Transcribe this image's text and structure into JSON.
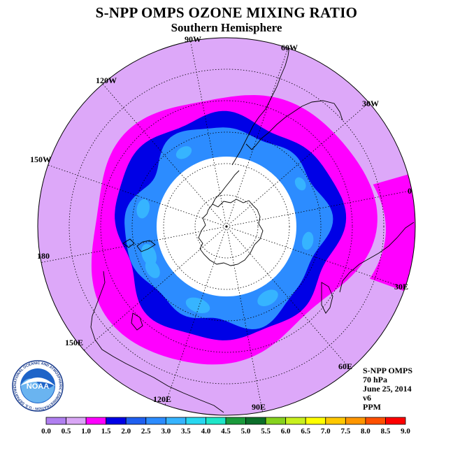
{
  "title": "S-NPP OMPS OZONE MIXING RATIO",
  "subtitle": "Southern Hemisphere",
  "longitude_labels": [
    "90W",
    "60W",
    "30W",
    "0",
    "30E",
    "60E",
    "90E",
    "120E",
    "150E",
    "180",
    "150W",
    "120W"
  ],
  "info": {
    "instrument": "S-NPP OMPS",
    "level": "70 hPa",
    "date": "June 25, 2014",
    "version": "v6",
    "units": "PPM"
  },
  "colorbar": {
    "ticks": [
      "0.0",
      "0.5",
      "1.0",
      "1.5",
      "2.0",
      "2.5",
      "3.0",
      "3.5",
      "4.0",
      "4.5",
      "5.0",
      "5.5",
      "6.0",
      "6.5",
      "7.0",
      "7.5",
      "8.0",
      "8.5",
      "9.0"
    ],
    "colors": [
      "#b07ff0",
      "#d9a6f5",
      "#ff00ff",
      "#0000e6",
      "#1f5ff0",
      "#2c8cff",
      "#36b4ff",
      "#28d7f0",
      "#1ee6c8",
      "#1a9a3c",
      "#0c6e2a",
      "#86d21e",
      "#c8f01e",
      "#ffff00",
      "#ffc800",
      "#ff9600",
      "#ff5000",
      "#ff0000",
      "#8c5a46"
    ]
  },
  "map_colors": {
    "outer": "#dda8f9",
    "magenta": "#ff00ff",
    "dark_blue": "#0000e6",
    "blue": "#2c8cff",
    "light_blue": "#36b4ff",
    "pole_hole": "#ffffff"
  },
  "logo": {
    "text": "NOAA",
    "ring_text": "NATIONAL OCEANIC AND ATMOSPHERIC ADMINISTRATION · U.S. DEPARTMENT OF COMMERCE"
  }
}
